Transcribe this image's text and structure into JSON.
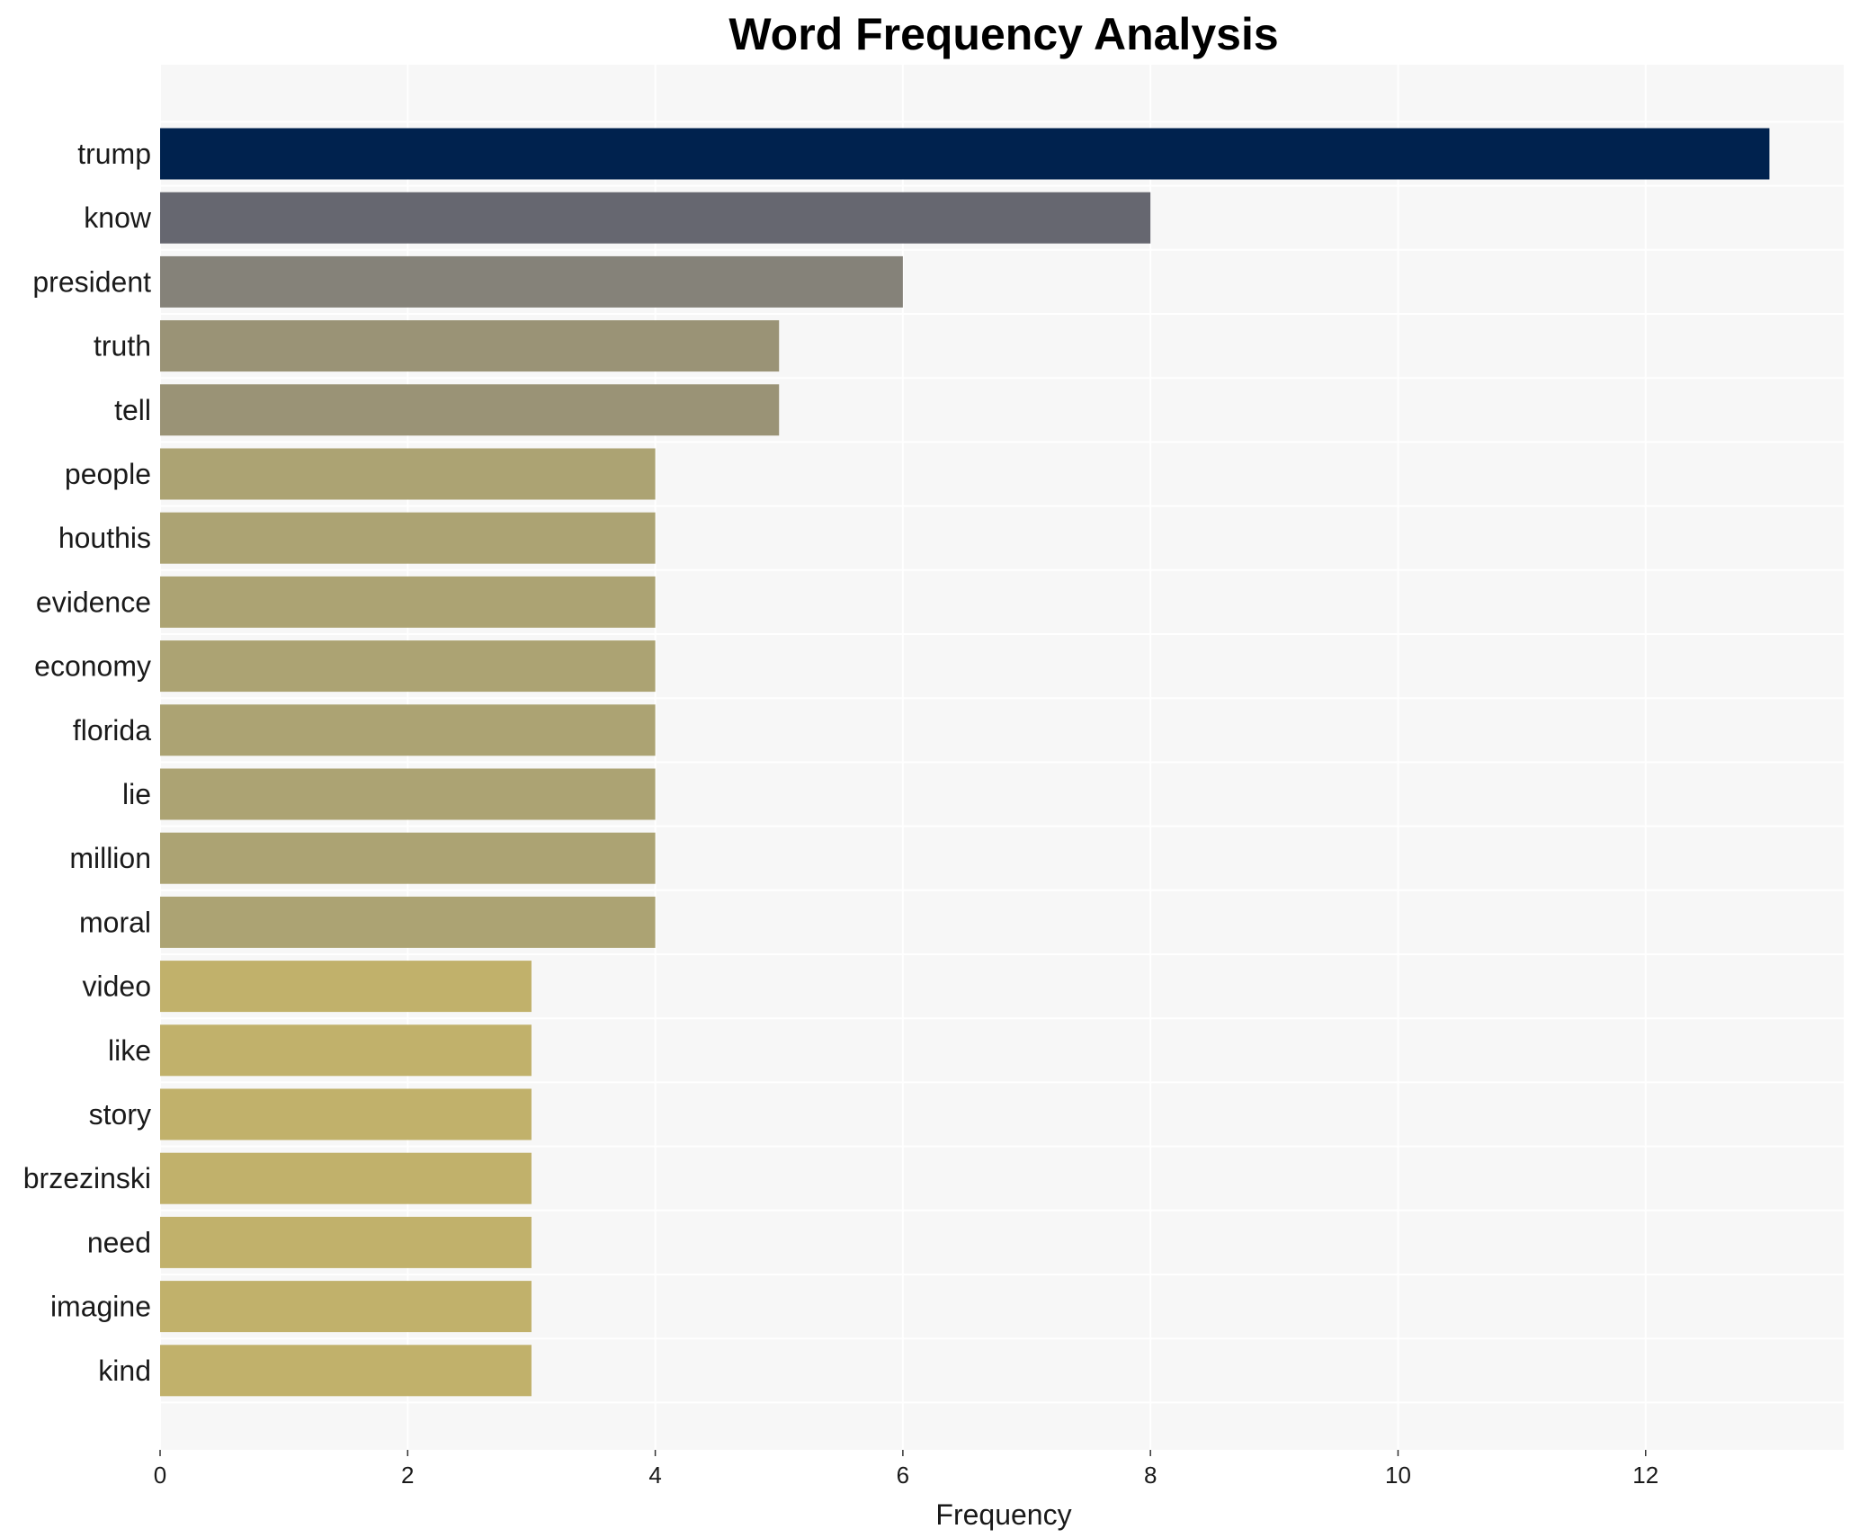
{
  "chart_data": {
    "type": "bar",
    "orientation": "horizontal",
    "title": "Word Frequency Analysis",
    "xlabel": "Frequency",
    "ylabel": "",
    "xlim": [
      0,
      13.6
    ],
    "xticks": [
      0,
      2,
      4,
      6,
      8,
      10,
      12
    ],
    "grid": true,
    "categories": [
      "trump",
      "know",
      "president",
      "truth",
      "tell",
      "people",
      "houthis",
      "evidence",
      "economy",
      "florida",
      "lie",
      "million",
      "moral",
      "video",
      "like",
      "story",
      "brzezinski",
      "need",
      "imagine",
      "kind"
    ],
    "values": [
      13,
      8,
      6,
      5,
      5,
      4,
      4,
      4,
      4,
      4,
      4,
      4,
      4,
      3,
      3,
      3,
      3,
      3,
      3,
      3
    ],
    "colors": [
      "#00224e",
      "#666770",
      "#858279",
      "#9a9376",
      "#9a9376",
      "#aca373",
      "#aca373",
      "#aca373",
      "#aca373",
      "#aca373",
      "#aca373",
      "#aca373",
      "#aca373",
      "#c1b16b",
      "#c1b16b",
      "#c1b16b",
      "#c1b16b",
      "#c1b16b",
      "#c1b16b",
      "#c1b16b"
    ],
    "background_color": "#f7f7f7"
  }
}
